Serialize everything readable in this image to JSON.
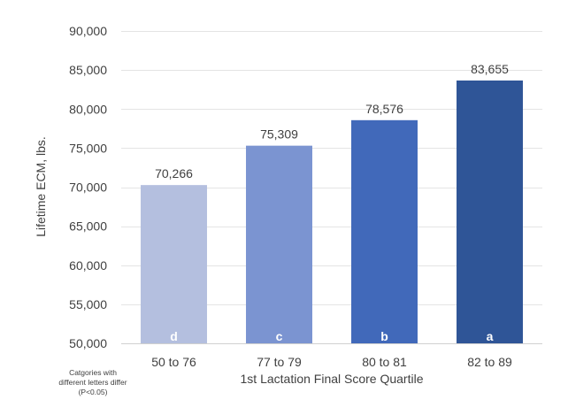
{
  "chart_data": {
    "type": "bar",
    "title": "",
    "xlabel": "1st Lactation Final Score Quartile",
    "ylabel": "Lifetime ECM, lbs.",
    "categories": [
      "50 to 76",
      "77 to 79",
      "80 to 81",
      "82 to 89"
    ],
    "values": [
      70266,
      75309,
      78576,
      83655
    ],
    "value_labels": [
      "70,266",
      "75,309",
      "78,576",
      "83,655"
    ],
    "letters": [
      "d",
      "c",
      "b",
      "a"
    ],
    "bar_colors": [
      "#b4bfdf",
      "#7b94d1",
      "#4169ba",
      "#2f5597"
    ],
    "ylim": [
      50000,
      90000
    ],
    "yticks": [
      50000,
      55000,
      60000,
      65000,
      70000,
      75000,
      80000,
      85000,
      90000
    ],
    "ytick_labels": [
      "50,000",
      "55,000",
      "60,000",
      "65,000",
      "70,000",
      "75,000",
      "80,000",
      "85,000",
      "90,000"
    ],
    "grid": true,
    "legend": "none"
  },
  "footnote": {
    "line1": "Catgories with",
    "line2": "different letters differ",
    "line3": "(P<0.05)"
  }
}
